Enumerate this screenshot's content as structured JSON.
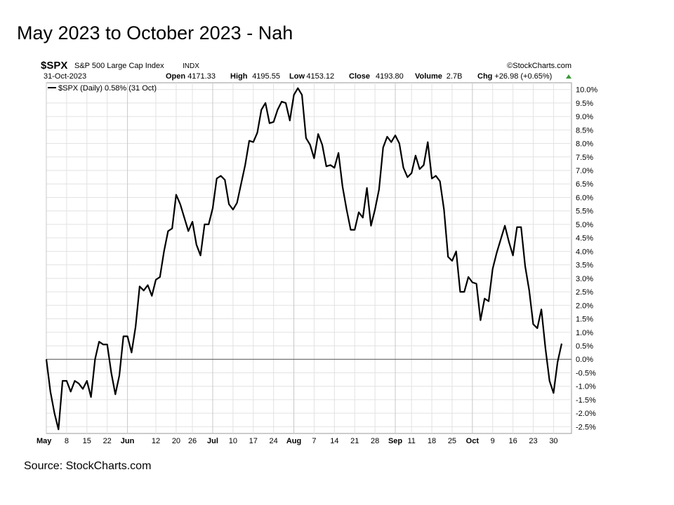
{
  "slide": {
    "title": "May 2023 to October 2023 - Nah",
    "source": "Source: StockCharts.com"
  },
  "header": {
    "symbol": "$SPX",
    "name": "S&P 500 Large Cap Index",
    "exchange": "INDX",
    "brand": "©StockCharts.com",
    "date": "31-Oct-2023",
    "ohlc": [
      {
        "label": "Open",
        "value": "4171.33"
      },
      {
        "label": "High",
        "value": "4195.55"
      },
      {
        "label": "Low",
        "value": "4153.12"
      },
      {
        "label": "Close",
        "value": "4193.80"
      },
      {
        "label": "Volume",
        "value": "2.7B"
      },
      {
        "label": "Chg",
        "value": "+26.98 (+0.65%)"
      }
    ]
  },
  "chart_data": {
    "type": "line",
    "legend": "$SPX (Daily) 0.58% (31 Oct)",
    "legend_position": "top-left",
    "ylim": [
      -2.75,
      10.25
    ],
    "grid": true,
    "zero_line": true,
    "line_color": "#000000",
    "y_ticks": [
      "10.0%",
      "9.5%",
      "9.0%",
      "8.5%",
      "8.0%",
      "7.5%",
      "7.0%",
      "6.5%",
      "6.0%",
      "5.5%",
      "5.0%",
      "4.5%",
      "4.0%",
      "3.5%",
      "3.0%",
      "2.5%",
      "2.0%",
      "1.5%",
      "1.0%",
      "0.5%",
      "0.0%",
      "-0.5%",
      "-1.0%",
      "-1.5%",
      "-2.0%",
      "-2.5%"
    ],
    "x_ticks": [
      {
        "label": "May",
        "bold": true
      },
      {
        "label": "8",
        "bold": false
      },
      {
        "label": "15",
        "bold": false
      },
      {
        "label": "22",
        "bold": false
      },
      {
        "label": "Jun",
        "bold": true
      },
      {
        "label": "12",
        "bold": false
      },
      {
        "label": "20",
        "bold": false
      },
      {
        "label": "26",
        "bold": false
      },
      {
        "label": "Jul",
        "bold": true
      },
      {
        "label": "10",
        "bold": false
      },
      {
        "label": "17",
        "bold": false
      },
      {
        "label": "24",
        "bold": false
      },
      {
        "label": "Aug",
        "bold": true
      },
      {
        "label": "7",
        "bold": false
      },
      {
        "label": "14",
        "bold": false
      },
      {
        "label": "21",
        "bold": false
      },
      {
        "label": "28",
        "bold": false
      },
      {
        "label": "Sep",
        "bold": true
      },
      {
        "label": "11",
        "bold": false
      },
      {
        "label": "18",
        "bold": false
      },
      {
        "label": "25",
        "bold": false
      },
      {
        "label": "Oct",
        "bold": true
      },
      {
        "label": "9",
        "bold": false
      },
      {
        "label": "16",
        "bold": false
      },
      {
        "label": "23",
        "bold": false
      },
      {
        "label": "30",
        "bold": false
      }
    ],
    "x_tick_sessions": [
      0,
      5,
      10,
      15,
      20,
      27,
      32,
      36,
      41,
      46,
      51,
      56,
      61,
      66,
      71,
      76,
      81,
      86,
      90,
      95,
      100,
      105,
      110,
      115,
      120,
      125
    ],
    "values": [
      0,
      -1.2,
      -2.0,
      -2.6,
      -0.8,
      -0.8,
      -1.2,
      -0.8,
      -0.9,
      -1.1,
      -0.8,
      -1.4,
      0,
      0.65,
      0.55,
      0.55,
      -0.5,
      -1.3,
      -0.6,
      0.85,
      0.85,
      0.25,
      1.2,
      2.7,
      2.55,
      2.75,
      2.35,
      2.95,
      3.05,
      4.0,
      4.75,
      4.85,
      6.1,
      5.75,
      5.25,
      4.75,
      5.1,
      4.25,
      3.85,
      5.0,
      5.0,
      5.6,
      6.7,
      6.8,
      6.65,
      5.75,
      5.55,
      5.8,
      6.5,
      7.2,
      8.1,
      8.05,
      8.4,
      9.25,
      9.5,
      8.75,
      8.8,
      9.25,
      9.55,
      9.5,
      8.85,
      9.8,
      10.05,
      9.8,
      8.2,
      7.95,
      7.45,
      8.35,
      7.95,
      7.15,
      7.2,
      7.1,
      7.65,
      6.4,
      5.55,
      4.8,
      4.8,
      5.45,
      5.25,
      6.35,
      4.95,
      5.55,
      6.3,
      7.85,
      8.25,
      8.05,
      8.3,
      8.0,
      7.1,
      6.75,
      6.9,
      7.55,
      7.05,
      7.2,
      8.05,
      6.7,
      6.8,
      6.6,
      5.55,
      3.8,
      3.65,
      4.0,
      2.5,
      2.5,
      3.05,
      2.85,
      2.8,
      1.45,
      2.25,
      2.15,
      3.35,
      3.95,
      4.45,
      4.95,
      4.35,
      3.85,
      4.9,
      4.9,
      3.45,
      2.55,
      1.3,
      1.15,
      1.85,
      0.4,
      -0.8,
      -1.25,
      -0.1,
      0.58
    ]
  }
}
